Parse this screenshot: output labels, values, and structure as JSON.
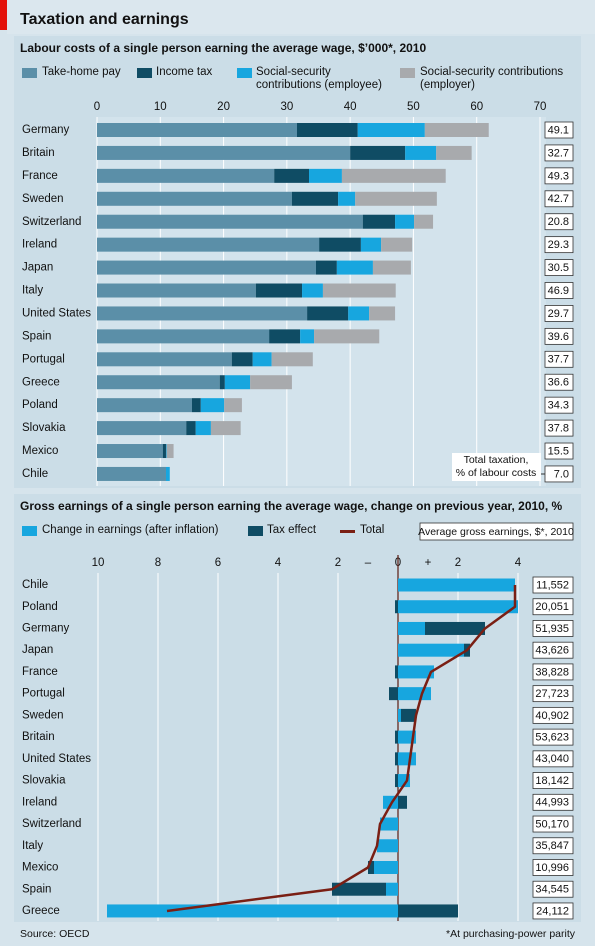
{
  "title": "Taxation and earnings",
  "source": "Source: OECD",
  "footnote": "*At purchasing-power parity",
  "chart_data": [
    {
      "type": "stacked-bar",
      "orientation": "horizontal",
      "subtitle": "Labour costs of a single person earning the average wage, $’000*, 2010",
      "categories": [
        "Germany",
        "Britain",
        "France",
        "Sweden",
        "Switzerland",
        "Ireland",
        "Japan",
        "Italy",
        "United States",
        "Spain",
        "Portugal",
        "Greece",
        "Poland",
        "Slovakia",
        "Mexico",
        "Chile"
      ],
      "series": [
        {
          "name": "Take-home pay",
          "color": "#5b8fa8",
          "values": [
            31.6,
            40.0,
            28.0,
            30.8,
            42.0,
            35.1,
            34.6,
            25.1,
            33.2,
            27.2,
            21.3,
            19.4,
            15.0,
            14.1,
            10.4,
            10.9
          ]
        },
        {
          "name": "Income tax",
          "color": "#0f4c64",
          "values": [
            9.6,
            8.7,
            5.5,
            7.3,
            5.1,
            6.6,
            3.3,
            7.3,
            6.5,
            4.9,
            3.3,
            0.8,
            1.4,
            1.5,
            0.5,
            0
          ]
        },
        {
          "name": "Social-security contributions (employee)",
          "color": "#17a6df",
          "values": [
            10.6,
            4.9,
            5.2,
            2.7,
            3.0,
            3.2,
            5.7,
            3.3,
            3.3,
            2.2,
            3.0,
            4.0,
            3.7,
            2.4,
            0.1,
            0.6
          ]
        },
        {
          "name": "Social-security contributions (employer)",
          "color": "#a8aaad",
          "values": [
            10.1,
            5.6,
            16.4,
            12.9,
            3.0,
            4.9,
            6.0,
            11.5,
            4.1,
            10.3,
            6.5,
            6.6,
            2.8,
            4.7,
            1.1,
            0
          ]
        }
      ],
      "xlim": [
        0,
        70
      ],
      "xticks": [
        0,
        10,
        20,
        30,
        40,
        50,
        60,
        70
      ],
      "grid": true,
      "total_taxation": {
        "title": [
          "Total taxation,",
          "% of labour costs"
        ],
        "values": [
          49.1,
          32.7,
          49.3,
          42.7,
          20.8,
          29.3,
          30.5,
          46.9,
          29.7,
          39.6,
          37.7,
          36.6,
          34.3,
          37.8,
          15.5,
          7.0
        ],
        "value_labels": [
          "49.1",
          "32.7",
          "49.3",
          "42.7",
          "20.8",
          "29.3",
          "30.5",
          "46.9",
          "29.7",
          "39.6",
          "37.7",
          "36.6",
          "34.3",
          "37.8",
          "15.5",
          "7.0"
        ]
      }
    },
    {
      "type": "diverging-bar",
      "orientation": "horizontal",
      "subtitle": "Gross earnings of a single person earning the average wage, change on previous year, 2010, %",
      "categories": [
        "Chile",
        "Poland",
        "Germany",
        "Japan",
        "France",
        "Portugal",
        "Sweden",
        "Britain",
        "United States",
        "Slovakia",
        "Ireland",
        "Switzerland",
        "Italy",
        "Mexico",
        "Spain",
        "Greece"
      ],
      "series": [
        {
          "name": "Change in earnings (after inflation)",
          "color": "#17a6df",
          "values": [
            3.9,
            4.0,
            0.9,
            2.2,
            1.2,
            1.1,
            0.1,
            0.6,
            0.6,
            0.4,
            -0.5,
            -0.6,
            -0.7,
            -0.8,
            -0.4,
            -9.7
          ]
        },
        {
          "name": "Tax effect",
          "color": "#0f4c64",
          "values": [
            0,
            -0.1,
            2.0,
            0.2,
            -0.1,
            -0.3,
            0.5,
            -0.1,
            -0.1,
            -0.1,
            0.3,
            0,
            0,
            -0.2,
            -1.8,
            2.0
          ]
        },
        {
          "name": "Total",
          "color": "#7a1f14",
          "type": "line",
          "values": [
            3.9,
            3.9,
            2.9,
            2.3,
            1.1,
            0.8,
            0.6,
            0.5,
            0.4,
            0.3,
            -0.2,
            -0.6,
            -0.7,
            -1.0,
            -2.2,
            -7.7
          ]
        }
      ],
      "xlim": [
        -10.5,
        5.8
      ],
      "xticks": [
        {
          "value": -10,
          "label": "10"
        },
        {
          "value": -8,
          "label": "8"
        },
        {
          "value": -6,
          "label": "6"
        },
        {
          "value": -4,
          "label": "4"
        },
        {
          "value": -2,
          "label": "2"
        },
        0,
        2,
        4
      ],
      "sign_labels": {
        "negative": "–",
        "positive": "+"
      },
      "grid": true,
      "average_gross_earnings": {
        "title": "Average gross earnings, $*, 2010",
        "values": [
          11552,
          20051,
          51935,
          43626,
          38828,
          27723,
          40902,
          53623,
          43040,
          18142,
          44993,
          50170,
          35847,
          10996,
          34545,
          24112
        ],
        "value_labels": [
          "11,552",
          "20,051",
          "51,935",
          "43,626",
          "38,828",
          "27,723",
          "40,902",
          "53,623",
          "43,040",
          "18,142",
          "44,993",
          "50,170",
          "35,847",
          "10,996",
          "34,545",
          "24,112"
        ]
      }
    }
  ]
}
